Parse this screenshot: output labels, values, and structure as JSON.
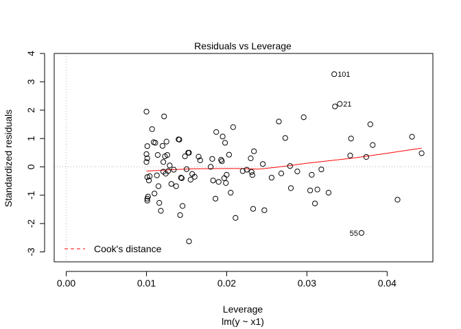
{
  "chart_data": {
    "type": "scatter",
    "title": "Residuals vs Leverage",
    "xlabel": "Leverage",
    "subtitle": "lm(y ~ x1)",
    "ylabel": "Standardized residuals",
    "xlim": [
      -0.0015,
      0.0457
    ],
    "ylim": [
      -3.35,
      4.0
    ],
    "xticks": [
      0.0,
      0.01,
      0.02,
      0.03,
      0.04
    ],
    "xtick_labels": [
      "0.00",
      "0.01",
      "0.02",
      "0.03",
      "0.04"
    ],
    "yticks": [
      -3,
      -2,
      -1,
      0,
      1,
      2,
      3,
      4
    ],
    "ytick_labels": [
      "-3",
      "-2",
      "-1",
      "0",
      "1",
      "2",
      "3",
      "4"
    ],
    "reference_lines": {
      "horizontal_y": 0,
      "vertical_x": 0,
      "style": "dotted",
      "color": "#bbbbbb"
    },
    "points": [
      {
        "x": 0.01,
        "y": 1.95
      },
      {
        "x": 0.0101,
        "y": 0.73
      },
      {
        "x": 0.01,
        "y": 0.45
      },
      {
        "x": 0.0101,
        "y": 0.3
      },
      {
        "x": 0.01,
        "y": 0.17
      },
      {
        "x": 0.0101,
        "y": -0.36
      },
      {
        "x": 0.0104,
        "y": -0.33
      },
      {
        "x": 0.0103,
        "y": -0.48
      },
      {
        "x": 0.0102,
        "y": -1.05
      },
      {
        "x": 0.0101,
        "y": -1.12
      },
      {
        "x": 0.0101,
        "y": -1.19
      },
      {
        "x": 0.0107,
        "y": 1.33
      },
      {
        "x": 0.0109,
        "y": 0.87
      },
      {
        "x": 0.0111,
        "y": 0.85
      },
      {
        "x": 0.011,
        "y": -0.94
      },
      {
        "x": 0.0113,
        "y": -0.3
      },
      {
        "x": 0.0114,
        "y": 0.42
      },
      {
        "x": 0.0115,
        "y": -0.68
      },
      {
        "x": 0.0116,
        "y": -1.27
      },
      {
        "x": 0.0118,
        "y": -1.55
      },
      {
        "x": 0.012,
        "y": 0.74
      },
      {
        "x": 0.0121,
        "y": 0.17
      },
      {
        "x": 0.0121,
        "y": -0.17
      },
      {
        "x": 0.0122,
        "y": 1.78
      },
      {
        "x": 0.0123,
        "y": 0.37
      },
      {
        "x": 0.0124,
        "y": -0.24
      },
      {
        "x": 0.0125,
        "y": 0.89
      },
      {
        "x": 0.0126,
        "y": 0.42
      },
      {
        "x": 0.0127,
        "y": -0.15
      },
      {
        "x": 0.0129,
        "y": 0.05
      },
      {
        "x": 0.0131,
        "y": -0.6
      },
      {
        "x": 0.0134,
        "y": -0.1
      },
      {
        "x": 0.0137,
        "y": -0.68
      },
      {
        "x": 0.014,
        "y": 0.97
      },
      {
        "x": 0.0141,
        "y": 0.96
      },
      {
        "x": 0.0142,
        "y": -1.7
      },
      {
        "x": 0.0143,
        "y": -0.38
      },
      {
        "x": 0.0144,
        "y": -0.4
      },
      {
        "x": 0.0145,
        "y": -1.38
      },
      {
        "x": 0.0148,
        "y": 0.37
      },
      {
        "x": 0.015,
        "y": -0.08
      },
      {
        "x": 0.0152,
        "y": 0.5
      },
      {
        "x": 0.0153,
        "y": 0.5
      },
      {
        "x": 0.0153,
        "y": -2.63
      },
      {
        "x": 0.0155,
        "y": -0.45
      },
      {
        "x": 0.0157,
        "y": -0.25
      },
      {
        "x": 0.016,
        "y": -0.35
      },
      {
        "x": 0.0165,
        "y": 0.36
      },
      {
        "x": 0.0167,
        "y": 0.23
      },
      {
        "x": 0.018,
        "y": 0.0
      },
      {
        "x": 0.0182,
        "y": 0.28
      },
      {
        "x": 0.0183,
        "y": -0.48
      },
      {
        "x": 0.0186,
        "y": -1.12
      },
      {
        "x": 0.0187,
        "y": 1.23
      },
      {
        "x": 0.019,
        "y": -0.53
      },
      {
        "x": 0.0193,
        "y": 0.25
      },
      {
        "x": 0.0194,
        "y": 0.2
      },
      {
        "x": 0.0195,
        "y": 1.07
      },
      {
        "x": 0.0197,
        "y": -0.4
      },
      {
        "x": 0.0198,
        "y": 0.85
      },
      {
        "x": 0.0199,
        "y": -0.57
      },
      {
        "x": 0.02,
        "y": -0.28
      },
      {
        "x": 0.0203,
        "y": 0.43
      },
      {
        "x": 0.0205,
        "y": -0.91
      },
      {
        "x": 0.0208,
        "y": 1.4
      },
      {
        "x": 0.0211,
        "y": -1.8
      },
      {
        "x": 0.022,
        "y": -0.15
      },
      {
        "x": 0.0225,
        "y": -0.1
      },
      {
        "x": 0.023,
        "y": 0.3
      },
      {
        "x": 0.0231,
        "y": -0.18
      },
      {
        "x": 0.0232,
        "y": -0.29
      },
      {
        "x": 0.0233,
        "y": -1.48
      },
      {
        "x": 0.0234,
        "y": 0.55
      },
      {
        "x": 0.0245,
        "y": 0.1
      },
      {
        "x": 0.0247,
        "y": -1.53
      },
      {
        "x": 0.0256,
        "y": -0.38
      },
      {
        "x": 0.0265,
        "y": 1.6
      },
      {
        "x": 0.0268,
        "y": -0.23
      },
      {
        "x": 0.0273,
        "y": 1.02
      },
      {
        "x": 0.0279,
        "y": 0.03
      },
      {
        "x": 0.028,
        "y": -0.75
      },
      {
        "x": 0.0288,
        "y": -0.16
      },
      {
        "x": 0.0296,
        "y": 1.75
      },
      {
        "x": 0.0304,
        "y": -0.83
      },
      {
        "x": 0.0306,
        "y": -0.28
      },
      {
        "x": 0.031,
        "y": -1.29
      },
      {
        "x": 0.0313,
        "y": -0.8
      },
      {
        "x": 0.0318,
        "y": -0.09
      },
      {
        "x": 0.0327,
        "y": -0.91
      },
      {
        "x": 0.0334,
        "y": 3.27
      },
      {
        "x": 0.0335,
        "y": 2.13
      },
      {
        "x": 0.0341,
        "y": 2.22
      },
      {
        "x": 0.0354,
        "y": 0.4
      },
      {
        "x": 0.0355,
        "y": 1.0
      },
      {
        "x": 0.0368,
        "y": -2.33
      },
      {
        "x": 0.0374,
        "y": 0.35
      },
      {
        "x": 0.0379,
        "y": 1.5
      },
      {
        "x": 0.0382,
        "y": 0.77
      },
      {
        "x": 0.0413,
        "y": -1.16
      },
      {
        "x": 0.0431,
        "y": 1.06
      },
      {
        "x": 0.0443,
        "y": 0.48
      }
    ],
    "point_labels": [
      {
        "text": "101",
        "x": 0.0334,
        "y": 3.27,
        "side": "right"
      },
      {
        "text": "21",
        "x": 0.0341,
        "y": 2.22,
        "side": "right"
      },
      {
        "text": "55",
        "x": 0.0368,
        "y": -2.33,
        "side": "left"
      }
    ],
    "smooth_line": {
      "color": "#ff0000",
      "x": [
        0.01,
        0.013,
        0.016,
        0.019,
        0.022,
        0.024,
        0.026,
        0.028,
        0.03,
        0.033,
        0.036,
        0.04,
        0.0443
      ],
      "y": [
        -0.15,
        -0.1,
        -0.07,
        -0.06,
        -0.06,
        -0.08,
        -0.02,
        0.05,
        0.13,
        0.22,
        0.32,
        0.48,
        0.66
      ]
    },
    "legend": {
      "placement": "bottom-left",
      "entries": [
        {
          "label": "Cook's distance",
          "style": "dashed",
          "color": "#ff0000"
        }
      ]
    }
  }
}
